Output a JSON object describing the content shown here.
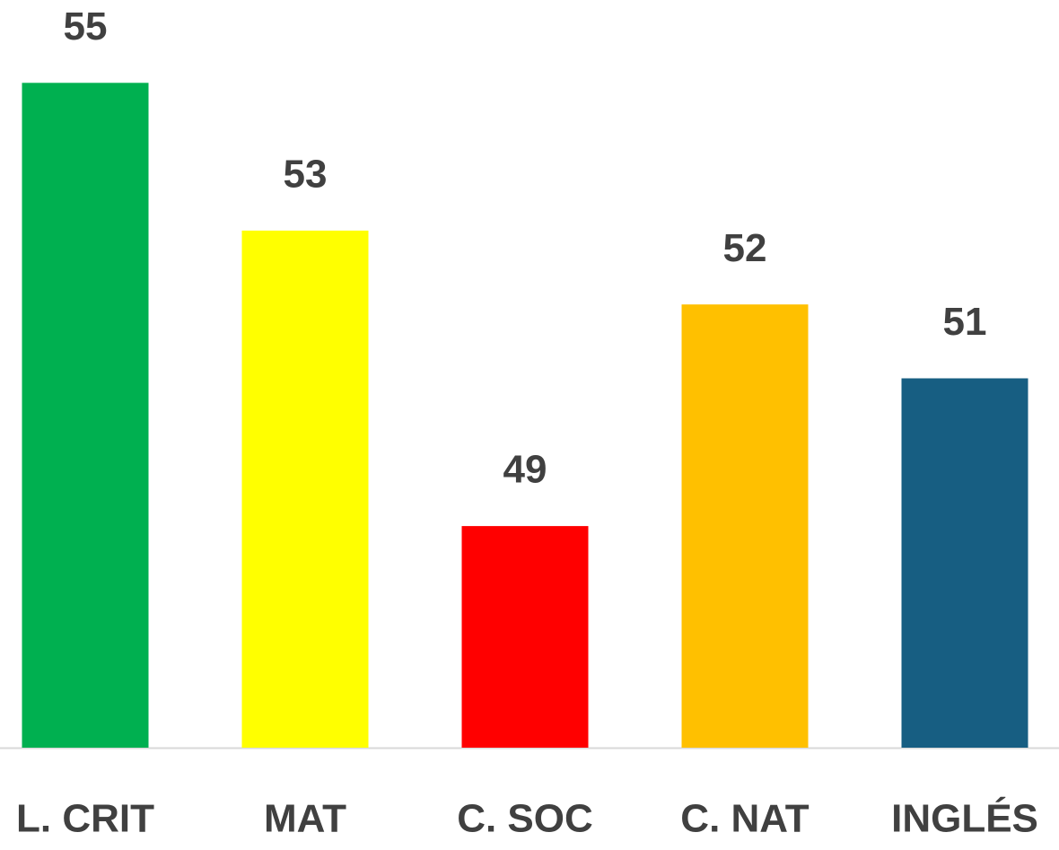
{
  "chart_data": {
    "type": "bar",
    "categories": [
      "L. CRIT",
      "MAT",
      "C. SOC",
      "C. NAT",
      "INGLÉS"
    ],
    "values": [
      55,
      53,
      49,
      52,
      51
    ],
    "colors": [
      "#00b050",
      "#ffff00",
      "#ff0000",
      "#ffc000",
      "#175e82"
    ],
    "ylim": [
      46,
      56
    ]
  }
}
